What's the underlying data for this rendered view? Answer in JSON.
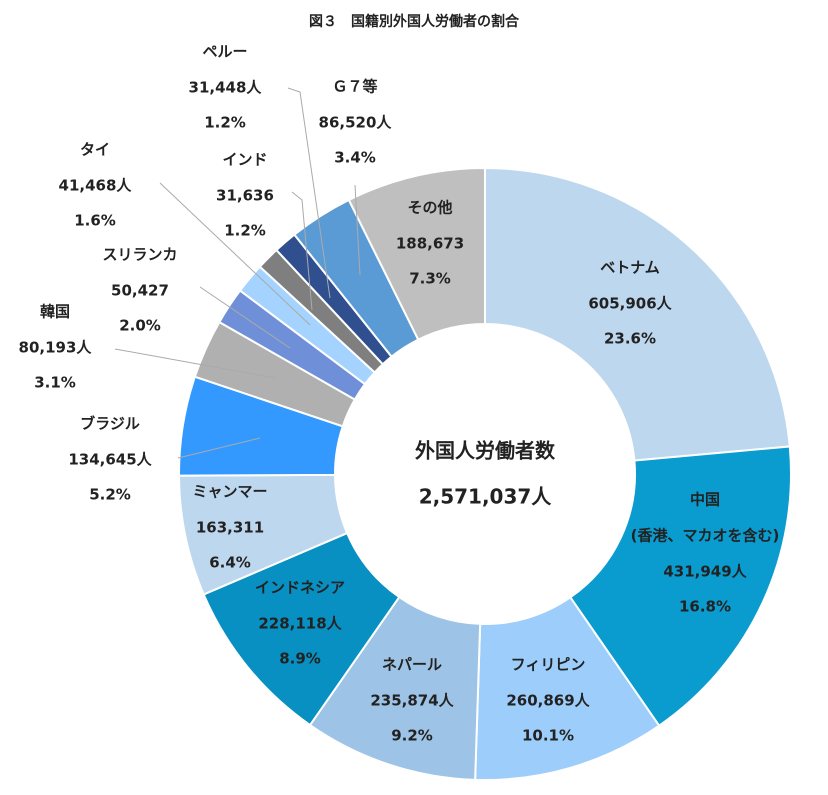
{
  "chart_data": {
    "type": "donut",
    "title": "図３　国籍別外国人労働者の割合",
    "center_label": "外国人労働者数",
    "total": 2571037,
    "total_label": "2,571,037人",
    "categories": [
      "ベトナム",
      "中国",
      "フィリピン",
      "ネパール",
      "インドネシア",
      "ミャンマー",
      "ブラジル",
      "韓国",
      "スリランカ",
      "タイ",
      "ペルー",
      "インド",
      "Ｇ７等",
      "その他"
    ],
    "annotations": [
      "(香港、マカオを含む)"
    ],
    "values": [
      605906,
      431949,
      260869,
      235874,
      228118,
      163311,
      134645,
      80193,
      50427,
      41468,
      31448,
      31636,
      86520,
      188673
    ],
    "value_labels": [
      "605,906人",
      "431,949人",
      "260,869人",
      "235,874人",
      "228,118人",
      "163,311",
      "134,645人",
      "80,193人",
      "50,427",
      "41,468人",
      "31,448人",
      "31,636",
      "86,520人",
      "188,673"
    ],
    "shares": [
      23.6,
      16.8,
      10.1,
      9.2,
      8.9,
      6.4,
      5.2,
      3.1,
      2.0,
      1.6,
      1.2,
      1.2,
      3.4,
      7.3
    ],
    "share_labels": [
      "23.6%",
      "16.8%",
      "10.1%",
      "9.2%",
      "8.9%",
      "6.4%",
      "5.2%",
      "3.1%",
      "2.0%",
      "1.6%",
      "1.2%",
      "1.2%",
      "3.4%",
      "7.3%"
    ],
    "colors": [
      "#bdd7ee",
      "#0a9bcf",
      "#9dcdfb",
      "#9dc3e6",
      "#0890c2",
      "#bdd7ee",
      "#3399ff",
      "#b0b0b0",
      "#6f8fd8",
      "#a5d3ff",
      "#7f7f7f",
      "#2f4f8f",
      "#5b9bd5",
      "#bfbfbf"
    ]
  }
}
